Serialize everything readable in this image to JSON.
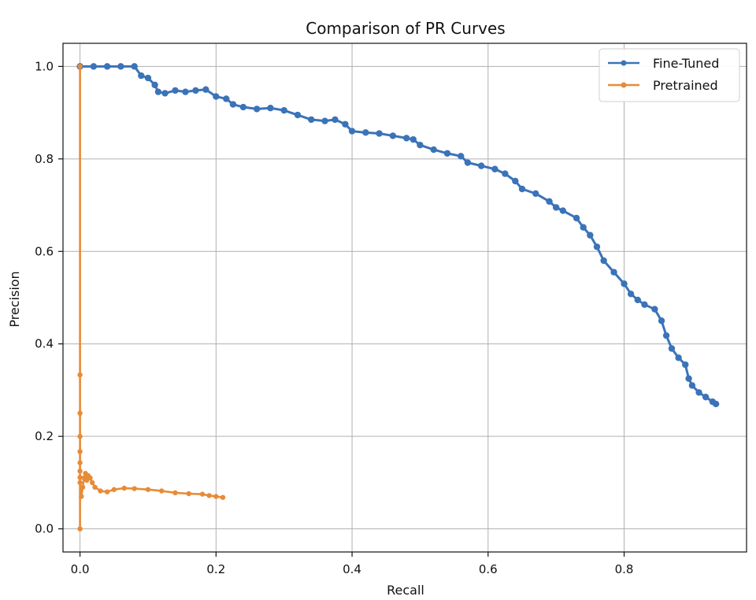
{
  "chart_data": {
    "type": "line",
    "title": "Comparison of PR Curves",
    "xlabel": "Recall",
    "ylabel": "Precision",
    "xlim": [
      -0.025,
      0.98
    ],
    "ylim": [
      -0.05,
      1.05
    ],
    "xticks": [
      0.0,
      0.2,
      0.4,
      0.6,
      0.8
    ],
    "yticks": [
      0.0,
      0.2,
      0.4,
      0.6,
      0.8,
      1.0
    ],
    "xtick_labels": [
      "0.0",
      "0.2",
      "0.4",
      "0.6",
      "0.8"
    ],
    "ytick_labels": [
      "0.0",
      "0.2",
      "0.4",
      "0.6",
      "0.8",
      "1.0"
    ],
    "grid": true,
    "legend_position": "top-right",
    "series": [
      {
        "name": "Fine-Tuned",
        "color": "#3b73b9",
        "marker": "circle",
        "points": [
          [
            0.0,
            1.0
          ],
          [
            0.02,
            1.0
          ],
          [
            0.04,
            1.0
          ],
          [
            0.06,
            1.0
          ],
          [
            0.08,
            1.0
          ],
          [
            0.09,
            0.98
          ],
          [
            0.1,
            0.975
          ],
          [
            0.11,
            0.96
          ],
          [
            0.115,
            0.945
          ],
          [
            0.125,
            0.942
          ],
          [
            0.14,
            0.948
          ],
          [
            0.155,
            0.945
          ],
          [
            0.17,
            0.948
          ],
          [
            0.185,
            0.95
          ],
          [
            0.2,
            0.935
          ],
          [
            0.215,
            0.93
          ],
          [
            0.225,
            0.918
          ],
          [
            0.24,
            0.912
          ],
          [
            0.26,
            0.908
          ],
          [
            0.28,
            0.91
          ],
          [
            0.3,
            0.905
          ],
          [
            0.32,
            0.895
          ],
          [
            0.34,
            0.885
          ],
          [
            0.36,
            0.882
          ],
          [
            0.375,
            0.885
          ],
          [
            0.39,
            0.875
          ],
          [
            0.4,
            0.86
          ],
          [
            0.42,
            0.857
          ],
          [
            0.44,
            0.855
          ],
          [
            0.46,
            0.85
          ],
          [
            0.48,
            0.845
          ],
          [
            0.49,
            0.842
          ],
          [
            0.5,
            0.83
          ],
          [
            0.52,
            0.82
          ],
          [
            0.54,
            0.812
          ],
          [
            0.56,
            0.806
          ],
          [
            0.57,
            0.792
          ],
          [
            0.59,
            0.785
          ],
          [
            0.61,
            0.778
          ],
          [
            0.625,
            0.768
          ],
          [
            0.64,
            0.752
          ],
          [
            0.65,
            0.735
          ],
          [
            0.67,
            0.725
          ],
          [
            0.69,
            0.708
          ],
          [
            0.7,
            0.695
          ],
          [
            0.71,
            0.688
          ],
          [
            0.73,
            0.672
          ],
          [
            0.74,
            0.652
          ],
          [
            0.75,
            0.635
          ],
          [
            0.76,
            0.61
          ],
          [
            0.77,
            0.58
          ],
          [
            0.785,
            0.555
          ],
          [
            0.8,
            0.53
          ],
          [
            0.81,
            0.508
          ],
          [
            0.82,
            0.495
          ],
          [
            0.83,
            0.485
          ],
          [
            0.845,
            0.475
          ],
          [
            0.855,
            0.45
          ],
          [
            0.862,
            0.418
          ],
          [
            0.87,
            0.39
          ],
          [
            0.88,
            0.37
          ],
          [
            0.89,
            0.355
          ],
          [
            0.895,
            0.325
          ],
          [
            0.9,
            0.31
          ],
          [
            0.91,
            0.295
          ],
          [
            0.92,
            0.285
          ],
          [
            0.93,
            0.275
          ],
          [
            0.935,
            0.27
          ]
        ]
      },
      {
        "name": "Pretrained",
        "color": "#e88b36",
        "marker": "circle",
        "points": [
          [
            0.0,
            0.0
          ],
          [
            0.0,
            1.0
          ],
          [
            0.0,
            0.0
          ],
          [
            0.0,
            0.333
          ],
          [
            0.0,
            0.25
          ],
          [
            0.0,
            0.2
          ],
          [
            0.0,
            0.167
          ],
          [
            0.0,
            0.143
          ],
          [
            0.0,
            0.125
          ],
          [
            0.0,
            0.111
          ],
          [
            0.0,
            0.1
          ],
          [
            0.002,
            0.07
          ],
          [
            0.004,
            0.09
          ],
          [
            0.006,
            0.11
          ],
          [
            0.008,
            0.12
          ],
          [
            0.01,
            0.105
          ],
          [
            0.012,
            0.115
          ],
          [
            0.015,
            0.11
          ],
          [
            0.018,
            0.1
          ],
          [
            0.022,
            0.09
          ],
          [
            0.03,
            0.082
          ],
          [
            0.04,
            0.08
          ],
          [
            0.05,
            0.085
          ],
          [
            0.065,
            0.088
          ],
          [
            0.08,
            0.087
          ],
          [
            0.1,
            0.085
          ],
          [
            0.12,
            0.082
          ],
          [
            0.14,
            0.078
          ],
          [
            0.16,
            0.076
          ],
          [
            0.18,
            0.075
          ],
          [
            0.19,
            0.072
          ],
          [
            0.2,
            0.07
          ],
          [
            0.21,
            0.068
          ]
        ]
      }
    ]
  }
}
